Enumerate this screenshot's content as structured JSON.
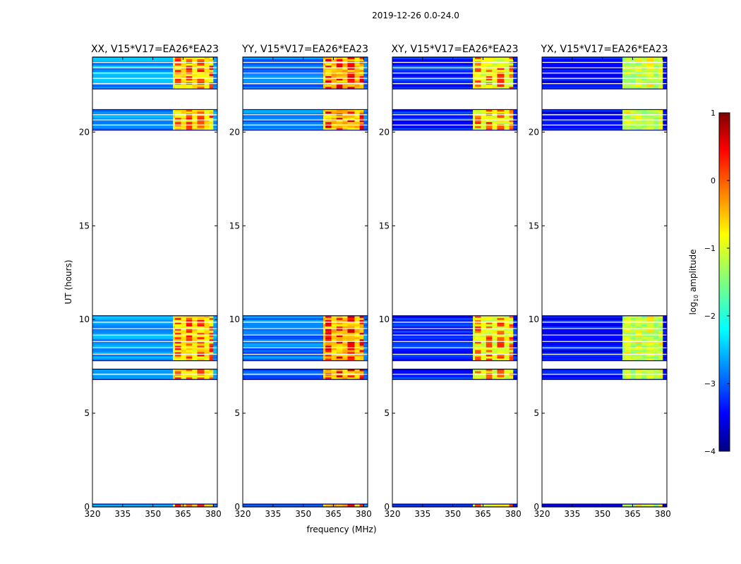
{
  "chart_data": {
    "type": "heatmap",
    "suptitle": "2019-12-26 0.0-24.0",
    "xlabel": "frequency (MHz)",
    "ylabel": "UT (hours)",
    "xlim": [
      320,
      382
    ],
    "ylim": [
      0,
      24
    ],
    "xticks": [
      320,
      335,
      350,
      365,
      380
    ],
    "xtick_labels": [
      "320",
      "335",
      "350",
      "365",
      "380"
    ],
    "yticks": [
      0,
      5,
      10,
      15,
      20
    ],
    "ytick_labels": [
      "0",
      "5",
      "10",
      "15",
      "20"
    ],
    "panels": [
      {
        "title": "XX, V15*V17=EA26*EA23",
        "base_level": -2.6,
        "band_level": -0.8,
        "hot_level": 0.1
      },
      {
        "title": "YY, V15*V17=EA26*EA23",
        "base_level": -2.8,
        "band_level": -0.6,
        "hot_level": 0.4
      },
      {
        "title": "XY, V15*V17=EA26*EA23",
        "base_level": -3.2,
        "band_level": -1.0,
        "hot_level": 0.0
      },
      {
        "title": "YX, V15*V17=EA26*EA23",
        "base_level": -3.4,
        "band_level": -1.3,
        "hot_level": -0.9
      }
    ],
    "data_blocks_ut_hours": [
      [
        0.0,
        0.15
      ],
      [
        6.8,
        7.35
      ],
      [
        7.8,
        10.2
      ],
      [
        20.1,
        21.2
      ],
      [
        22.3,
        24.0
      ]
    ],
    "bright_band_mhz": [
      360,
      380
    ],
    "bright_channels_mhz": [
      361,
      364,
      366.5,
      369.5,
      372,
      375.5,
      378
    ],
    "colorbar": {
      "label_prefix": "log",
      "label_subscript": "10",
      "label_suffix": " amplitude",
      "range": [
        -4,
        1
      ],
      "ticks": [
        1,
        0,
        -1,
        -2,
        -3,
        -4
      ],
      "tick_labels": [
        "1",
        "0",
        "−1",
        "−2",
        "−3",
        "−4"
      ],
      "colormap": "jet"
    }
  }
}
